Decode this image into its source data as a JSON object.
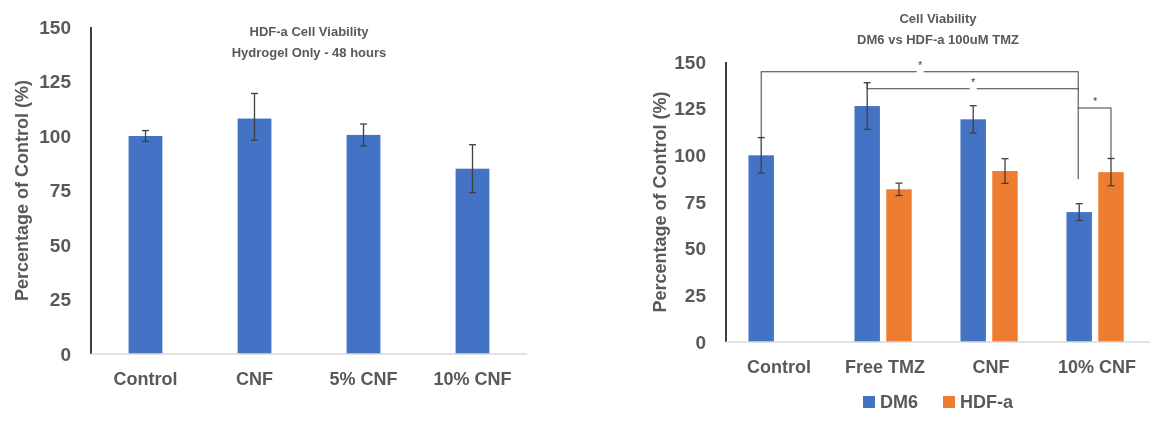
{
  "chart_data": [
    {
      "type": "bar",
      "title": "HDF-a Cell Viability\nHydrogel Only - 48 hours",
      "ylabel": "Percentage of Control (%)",
      "categories": [
        "Control",
        "CNF",
        "5% CNF",
        "10% CNF"
      ],
      "series": [
        {
          "color": "#4472c4",
          "values": [
            100,
            108,
            100.5,
            85
          ],
          "errors": [
            2.5,
            [
              98,
              119.5
            ],
            5,
            11
          ]
        }
      ],
      "ylim": [
        0,
        150
      ],
      "yticks": [
        0,
        25,
        50,
        75,
        100,
        125,
        150
      ],
      "grid": false,
      "legend": false
    },
    {
      "type": "bar",
      "title": "Cell Viability\nDM6 vs HDF-a  100uM TMZ",
      "ylabel": "Percentage of Control (%)",
      "categories": [
        "Control",
        "Free TMZ",
        "CNF",
        "10% CNF"
      ],
      "series": [
        {
          "name": "DM6",
          "color": "#4472c4",
          "values": [
            100,
            126.4,
            119.3,
            69.6
          ],
          "errors": [
            9.5,
            12.5,
            7.3,
            4.5
          ]
        },
        {
          "name": "HDF-a",
          "color": "#ed7d31",
          "values": [
            null,
            81.8,
            91.6,
            91
          ],
          "errors": [
            null,
            3.3,
            6.6,
            7.3
          ]
        }
      ],
      "ylim": [
        0,
        150
      ],
      "yticks": [
        0,
        25,
        50,
        75,
        100,
        125,
        150
      ],
      "grid": false,
      "legend": "bottom",
      "annotations": [
        "*",
        "*",
        "*"
      ]
    }
  ]
}
